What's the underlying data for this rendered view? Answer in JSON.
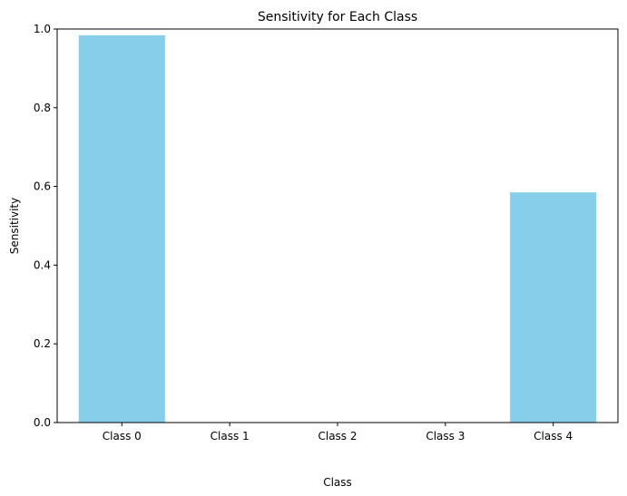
{
  "chart_data": {
    "type": "bar",
    "title": "Sensitivity for Each Class",
    "xlabel": "Class",
    "ylabel": "Sensitivity",
    "categories": [
      "Class 0",
      "Class 1",
      "Class 2",
      "Class 3",
      "Class 4"
    ],
    "values": [
      0.984,
      0.0,
      0.0,
      0.0,
      0.585
    ],
    "ylim": [
      0,
      1.0
    ],
    "yticks": [
      "0.0",
      "0.2",
      "0.4",
      "0.6",
      "0.8",
      "1.0"
    ],
    "grid": false,
    "legend": "none",
    "bar_color": "#87ceeb"
  }
}
